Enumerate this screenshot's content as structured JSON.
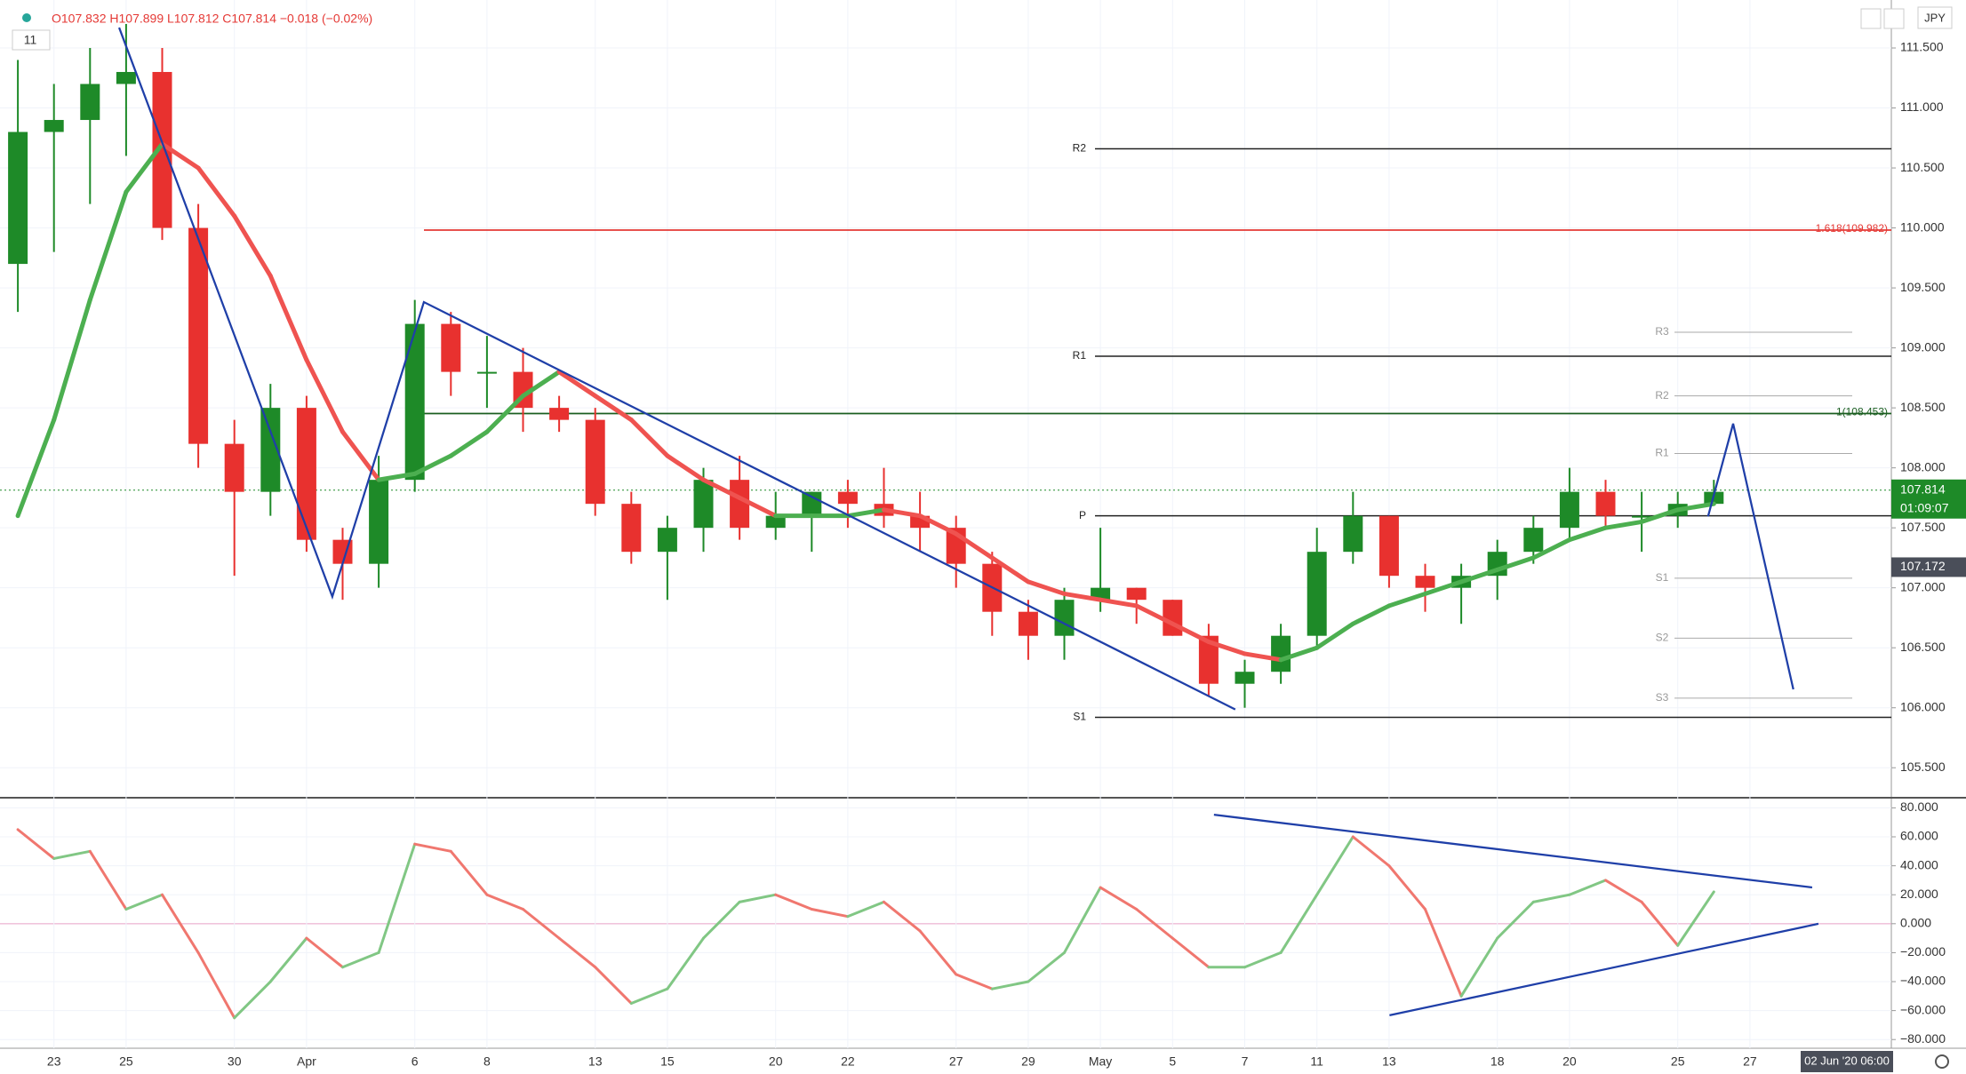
{
  "chart_data": {
    "type": "candlestick",
    "header": "O107.832 H107.899 L107.812 C107.814 −0.018 (−0.02%)",
    "interval": "11",
    "currency": "JPY",
    "countdown": "01:09:07",
    "cursor_time": "02 Jun '20  06:00",
    "categories": [
      null,
      "23",
      null,
      "25",
      null,
      null,
      "30",
      null,
      "Apr",
      null,
      null,
      "6",
      null,
      "8",
      null,
      null,
      "13",
      null,
      "15",
      null,
      null,
      "20",
      null,
      "22",
      null,
      null,
      "27",
      null,
      "29",
      null,
      "May",
      null,
      "5",
      null,
      "7",
      null,
      "11",
      null,
      "13",
      null,
      null,
      "18",
      null,
      "20",
      null,
      null,
      "25",
      null,
      "27"
    ],
    "open": [
      109.7,
      110.8,
      110.9,
      111.2,
      111.3,
      110.0,
      108.2,
      107.8,
      108.5,
      107.4,
      107.2,
      107.9,
      109.2,
      108.8,
      108.8,
      108.5,
      108.4,
      107.7,
      107.3,
      107.5,
      107.9,
      107.5,
      107.6,
      107.8,
      107.7,
      107.6,
      107.5,
      107.2,
      106.8,
      106.6,
      106.9,
      107.0,
      106.9,
      106.6,
      106.2,
      106.3,
      106.6,
      107.3,
      107.6,
      107.1,
      107.0,
      107.1,
      107.3,
      107.5,
      107.8,
      107.6,
      107.6,
      107.7,
      null
    ],
    "high": [
      111.4,
      111.2,
      111.5,
      111.7,
      111.5,
      110.2,
      108.4,
      108.7,
      108.6,
      107.5,
      108.1,
      109.4,
      109.3,
      109.1,
      109.0,
      108.6,
      108.5,
      107.8,
      107.6,
      108.0,
      108.1,
      107.8,
      107.8,
      107.9,
      108.0,
      107.8,
      107.6,
      107.3,
      106.9,
      107.0,
      107.5,
      107.0,
      106.9,
      106.7,
      106.4,
      106.7,
      107.5,
      107.8,
      107.6,
      107.2,
      107.2,
      107.4,
      107.6,
      108.0,
      107.9,
      107.8,
      107.8,
      107.9,
      null
    ],
    "low": [
      109.3,
      109.8,
      110.2,
      110.6,
      109.9,
      108.0,
      107.1,
      107.6,
      107.3,
      106.9,
      107.0,
      107.8,
      108.6,
      108.5,
      108.3,
      108.3,
      107.6,
      107.2,
      106.9,
      107.3,
      107.4,
      107.4,
      107.3,
      107.5,
      107.5,
      107.3,
      107.0,
      106.6,
      106.4,
      106.4,
      106.8,
      106.7,
      106.6,
      106.1,
      106.0,
      106.2,
      106.5,
      107.2,
      107.0,
      106.8,
      106.7,
      106.9,
      107.2,
      107.4,
      107.5,
      107.3,
      107.5,
      107.7,
      null
    ],
    "close": [
      110.8,
      110.9,
      111.2,
      111.3,
      110.0,
      108.2,
      107.8,
      108.5,
      107.4,
      107.2,
      107.9,
      109.2,
      108.8,
      108.8,
      108.5,
      108.4,
      107.7,
      107.3,
      107.5,
      107.9,
      107.5,
      107.6,
      107.8,
      107.7,
      107.6,
      107.5,
      107.2,
      106.8,
      106.6,
      106.9,
      107.0,
      106.9,
      106.6,
      106.2,
      106.3,
      106.6,
      107.3,
      107.6,
      107.1,
      107.0,
      107.1,
      107.3,
      107.5,
      107.8,
      107.6,
      107.6,
      107.7,
      107.8,
      null
    ],
    "up_color": "#1e8a28",
    "down_color": "#e8312f",
    "ma": {
      "values": [
        107.6,
        108.4,
        109.4,
        110.3,
        110.7,
        110.5,
        110.1,
        109.6,
        108.9,
        108.3,
        107.9,
        107.95,
        108.1,
        108.3,
        108.6,
        108.8,
        108.6,
        108.4,
        108.1,
        107.9,
        107.75,
        107.6,
        107.6,
        107.6,
        107.65,
        107.6,
        107.45,
        107.25,
        107.05,
        106.95,
        106.9,
        106.85,
        106.7,
        106.55,
        106.45,
        106.4,
        106.5,
        106.7,
        106.85,
        106.95,
        107.05,
        107.15,
        107.25,
        107.4,
        107.5,
        107.55,
        107.65,
        107.7,
        null
      ],
      "up_color": "#4caf50",
      "down_color": "#ef5350"
    },
    "ylim": [
      105.25,
      111.9
    ],
    "yticks": [
      {
        "value": 105.5,
        "label": "105.500"
      },
      {
        "value": 106,
        "label": "106.000"
      },
      {
        "value": 106.5,
        "label": "106.500"
      },
      {
        "value": 107,
        "label": "107.000"
      },
      {
        "value": 107.5,
        "label": "107.500"
      },
      {
        "value": 108,
        "label": "108.000"
      },
      {
        "value": 108.5,
        "label": "108.500"
      },
      {
        "value": 109,
        "label": "109.000"
      },
      {
        "value": 109.5,
        "label": "109.500"
      },
      {
        "value": 110,
        "label": "110.000"
      },
      {
        "value": 110.5,
        "label": "110.500"
      },
      {
        "value": 111,
        "label": "111.000"
      },
      {
        "value": 111.5,
        "label": "111.500"
      }
    ],
    "last_price": 107.814,
    "cursor_price": 107.172,
    "pivots": [
      {
        "label": "R2",
        "value": 110.66
      },
      {
        "label": "R1",
        "value": 108.93
      },
      {
        "label": "P",
        "value": 107.6
      },
      {
        "label": "S1",
        "value": 105.92
      }
    ],
    "pivots_minor": [
      {
        "label": "R3",
        "value": 109.13
      },
      {
        "label": "R2",
        "value": 108.6
      },
      {
        "label": "R1",
        "value": 108.12
      },
      {
        "label": "S1",
        "value": 107.08
      },
      {
        "label": "S2",
        "value": 106.58
      },
      {
        "label": "S3",
        "value": 106.08
      }
    ],
    "fib_levels": [
      {
        "label": "1.618(109.982)",
        "value": 109.982,
        "color": "#e53935"
      },
      {
        "label": "1(108.453)",
        "value": 108.453,
        "color": "#1b5e20"
      }
    ],
    "oscillator": {
      "values": [
        65,
        45,
        50,
        10,
        20,
        -20,
        -65,
        -40,
        -10,
        -30,
        -20,
        55,
        50,
        20,
        10,
        -10,
        -30,
        -55,
        -45,
        -10,
        15,
        20,
        10,
        5,
        15,
        -5,
        -35,
        -45,
        -40,
        -20,
        25,
        10,
        -10,
        -30,
        -30,
        -20,
        20,
        60,
        40,
        10,
        -50,
        -10,
        15,
        20,
        30,
        15,
        -15,
        22,
        null
      ],
      "up_color": "#81c784",
      "down_color": "#f0776f",
      "ylim": [
        -86,
        87
      ],
      "yticks": [
        {
          "value": -80,
          "label": "−80.000"
        },
        {
          "value": -60,
          "label": "−60.000"
        },
        {
          "value": -40,
          "label": "−40.000"
        },
        {
          "value": -20,
          "label": "−20.000"
        },
        {
          "value": 0,
          "label": "0.000"
        },
        {
          "value": 20,
          "label": "20.000"
        },
        {
          "value": 40,
          "label": "40.000"
        },
        {
          "value": 60,
          "label": "60.000"
        },
        {
          "value": 80,
          "label": "80.000"
        }
      ]
    }
  }
}
